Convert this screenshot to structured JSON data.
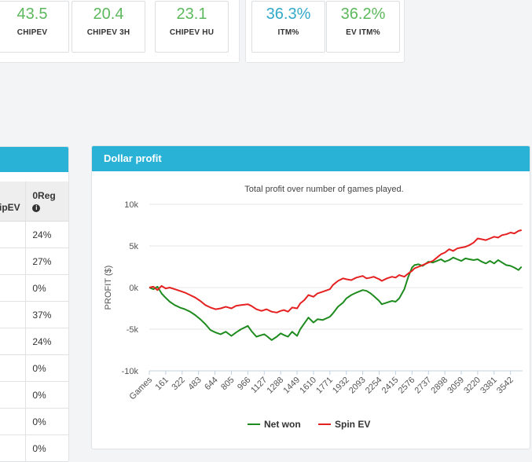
{
  "stats_group_1": [
    {
      "value": "43.5",
      "label": "CHIPEV",
      "color": "#5cb85c"
    },
    {
      "value": "20.4",
      "label": "CHIPEV 3H",
      "color": "#5cb85c"
    },
    {
      "value": "23.1",
      "label": "CHIPEV HU",
      "color": "#5cb85c"
    }
  ],
  "stats_group_2": [
    {
      "value": "36.3%",
      "label": "ITM%",
      "color": "#31a9c9"
    },
    {
      "value": "36.2%",
      "label": "EV ITM%",
      "color": "#5cb85c"
    }
  ],
  "left_table": {
    "headers": [
      "ipEV",
      "0Reg"
    ],
    "info_icon": "info-circle-icon",
    "rows": [
      "24%",
      "27%",
      "0%",
      "37%",
      "24%",
      "0%",
      "0%",
      "0%",
      "0%"
    ]
  },
  "chart_panel": {
    "title": "Dollar profit"
  },
  "chart_data": {
    "type": "line",
    "title": "Total profit over number of games played.",
    "ylabel": "PROFIT ($)",
    "xlabel": "",
    "x_label_first": "Games",
    "x_ticks": [
      161,
      322,
      483,
      644,
      805,
      966,
      1127,
      1288,
      1449,
      1610,
      1771,
      1932,
      2093,
      2254,
      2415,
      2576,
      2737,
      2898,
      3059,
      3220,
      3381,
      3542
    ],
    "y_ticks": [
      "10k",
      "5k",
      "0k",
      "-5k",
      "-10k"
    ],
    "ylim": [
      -10000,
      10000
    ],
    "xlim": [
      0,
      3660
    ],
    "grid": true,
    "legend_position": "bottom",
    "series": [
      {
        "name": "Net won",
        "color": "#1e8b1e",
        "x": [
          0,
          40,
          80,
          120,
          150,
          200,
          250,
          300,
          350,
          400,
          450,
          500,
          550,
          600,
          650,
          700,
          750,
          805,
          850,
          900,
          966,
          1000,
          1050,
          1100,
          1127,
          1150,
          1200,
          1250,
          1288,
          1320,
          1360,
          1400,
          1449,
          1480,
          1520,
          1560,
          1610,
          1650,
          1700,
          1771,
          1800,
          1850,
          1900,
          1932,
          1980,
          2030,
          2093,
          2130,
          2170,
          2200,
          2254,
          2280,
          2330,
          2380,
          2415,
          2450,
          2500,
          2540,
          2576,
          2600,
          2640,
          2680,
          2737,
          2780,
          2820,
          2860,
          2898,
          2940,
          2980,
          3020,
          3059,
          3100,
          3140,
          3180,
          3220,
          3260,
          3300,
          3340,
          3381,
          3420,
          3460,
          3500,
          3542,
          3580,
          3620,
          3650
        ],
        "y": [
          0,
          -200,
          100,
          -700,
          -1100,
          -1700,
          -2100,
          -2400,
          -2600,
          -2900,
          -3300,
          -3800,
          -4400,
          -5100,
          -5400,
          -5600,
          -5300,
          -5800,
          -5400,
          -5000,
          -4600,
          -5200,
          -5900,
          -5700,
          -5600,
          -5800,
          -6300,
          -5900,
          -5500,
          -5700,
          -5900,
          -5300,
          -5800,
          -5000,
          -4300,
          -3600,
          -4200,
          -3800,
          -3900,
          -3500,
          -3100,
          -2300,
          -1800,
          -1300,
          -900,
          -600,
          -300,
          -400,
          -700,
          -1000,
          -1600,
          -2000,
          -1800,
          -1600,
          -1700,
          -1300,
          -200,
          1300,
          2400,
          2700,
          2800,
          2600,
          3100,
          3000,
          3200,
          3400,
          3100,
          3300,
          3600,
          3400,
          3200,
          3500,
          3400,
          3300,
          3400,
          3100,
          2900,
          3200,
          2900,
          3300,
          3000,
          2700,
          2600,
          2400,
          2100,
          2500
        ]
      },
      {
        "name": "Spin EV",
        "color": "#e52020",
        "x": [
          0,
          40,
          80,
          120,
          160,
          200,
          250,
          300,
          350,
          400,
          450,
          500,
          550,
          600,
          650,
          700,
          750,
          805,
          850,
          900,
          966,
          1000,
          1050,
          1100,
          1127,
          1150,
          1200,
          1250,
          1288,
          1320,
          1360,
          1400,
          1449,
          1480,
          1520,
          1560,
          1610,
          1650,
          1700,
          1771,
          1800,
          1850,
          1900,
          1932,
          1980,
          2030,
          2093,
          2130,
          2170,
          2200,
          2254,
          2280,
          2330,
          2380,
          2415,
          2450,
          2500,
          2540,
          2576,
          2600,
          2640,
          2680,
          2737,
          2780,
          2820,
          2860,
          2898,
          2940,
          2980,
          3020,
          3059,
          3100,
          3140,
          3180,
          3220,
          3260,
          3300,
          3340,
          3381,
          3420,
          3460,
          3500,
          3542,
          3580,
          3620,
          3650
        ],
        "y": [
          0,
          100,
          -300,
          200,
          -100,
          0,
          -200,
          -400,
          -600,
          -900,
          -1200,
          -1600,
          -2100,
          -2400,
          -2600,
          -2500,
          -2300,
          -2500,
          -2200,
          -2100,
          -2000,
          -2200,
          -2600,
          -2800,
          -2700,
          -2600,
          -2900,
          -3000,
          -2800,
          -2700,
          -2900,
          -2400,
          -2500,
          -1900,
          -1500,
          -900,
          -1100,
          -700,
          -500,
          -200,
          300,
          800,
          1100,
          1000,
          900,
          1200,
          1400,
          1100,
          1200,
          1300,
          1000,
          800,
          1100,
          1300,
          1200,
          1500,
          1300,
          1700,
          2000,
          2300,
          2500,
          2700,
          3000,
          3200,
          3600,
          4000,
          4200,
          4600,
          4400,
          4700,
          4800,
          4900,
          5100,
          5400,
          5900,
          5800,
          5700,
          5900,
          6100,
          6000,
          6300,
          6400,
          6600,
          6500,
          6800,
          6900
        ]
      }
    ]
  }
}
